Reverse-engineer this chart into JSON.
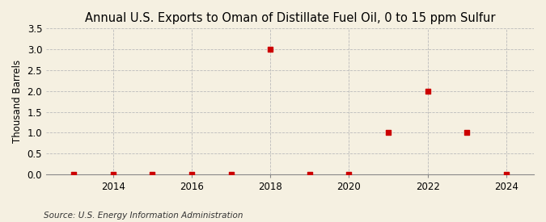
{
  "title": "Annual U.S. Exports to Oman of Distillate Fuel Oil, 0 to 15 ppm Sulfur",
  "ylabel": "Thousand Barrels",
  "source": "Source: U.S. Energy Information Administration",
  "years": [
    2013,
    2014,
    2015,
    2016,
    2017,
    2018,
    2019,
    2020,
    2021,
    2022,
    2023,
    2024
  ],
  "values": [
    0,
    0,
    0,
    0,
    0,
    3.0,
    0,
    0,
    1.0,
    2.0,
    1.0,
    0
  ],
  "marker_color": "#cc0000",
  "marker_size": 4,
  "background_color": "#f5f0e1",
  "ylim": [
    0,
    3.5
  ],
  "yticks": [
    0.0,
    0.5,
    1.0,
    1.5,
    2.0,
    2.5,
    3.0,
    3.5
  ],
  "xticks": [
    2014,
    2016,
    2018,
    2020,
    2022,
    2024
  ],
  "grid_color": "#bbbbbb",
  "title_fontsize": 10.5,
  "ylabel_fontsize": 8.5,
  "tick_fontsize": 8.5,
  "source_fontsize": 7.5
}
